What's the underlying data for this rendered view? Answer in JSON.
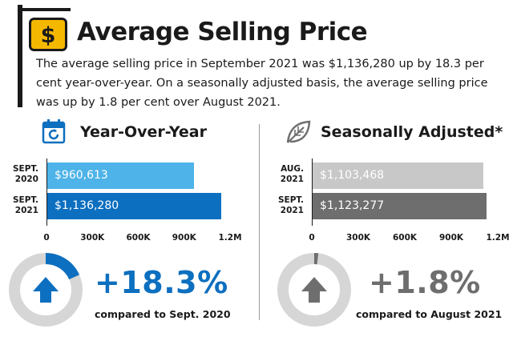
{
  "header": {
    "title": "Average Selling Price",
    "description": "The average selling price in September 2021 was $1,136,280 up by 18.3 per cent year-over-year. On a seasonally adjusted basis, the average selling price was up by 1.8 per cent over August 2021.",
    "icon": "dollar-sign-icon"
  },
  "colors": {
    "blue_light": "#4db3e8",
    "blue_dark": "#0d6fbf",
    "gray_light": "#c8c8c8",
    "gray_dark": "#6e6e6e",
    "icon_yellow": "#f5b800"
  },
  "yoy": {
    "heading": "Year-Over-Year",
    "icon": "calendar-refresh-icon",
    "change": "+18.3%",
    "compared_to": "compared to Sept. 2020",
    "gauge_fraction": 0.183
  },
  "sa": {
    "heading": "Seasonally Adjusted*",
    "icon": "leaf-icon",
    "change": "+1.8%",
    "compared_to": "compared to August 2021",
    "gauge_fraction": 0.018
  },
  "chart_data": [
    {
      "type": "bar",
      "orientation": "horizontal",
      "categories": [
        [
          "SEPT.",
          "2020"
        ],
        [
          "SEPT.",
          "2021"
        ]
      ],
      "values": [
        960613,
        1136280
      ],
      "value_labels": [
        "$960,613",
        "$1,136,280"
      ],
      "xlim": [
        0,
        1200000
      ],
      "xticks": [
        0,
        300000,
        600000,
        900000,
        1200000
      ],
      "xtick_labels": [
        "0",
        "300K",
        "600K",
        "900K",
        "1.2M"
      ],
      "grid": false
    },
    {
      "type": "bar",
      "orientation": "horizontal",
      "categories": [
        [
          "AUG.",
          "2021"
        ],
        [
          "SEPT.",
          "2021"
        ]
      ],
      "values": [
        1103468,
        1123277
      ],
      "value_labels": [
        "$1,103,468",
        "$1,123,277"
      ],
      "xlim": [
        0,
        1200000
      ],
      "xticks": [
        0,
        300000,
        600000,
        900000,
        1200000
      ],
      "xtick_labels": [
        "0",
        "300K",
        "600K",
        "900K",
        "1.2M"
      ],
      "grid": false
    }
  ]
}
